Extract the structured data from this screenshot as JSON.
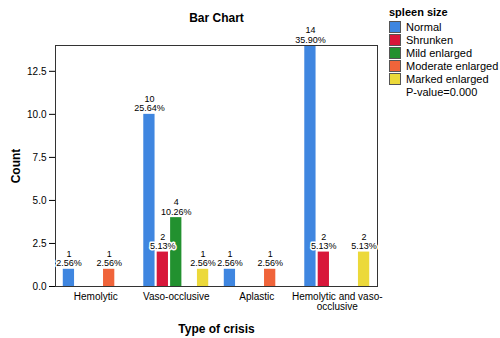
{
  "chart_data": {
    "type": "bar",
    "title": "Bar Chart",
    "x_label": "Type of crisis",
    "y_label": "Count",
    "categories": [
      "Hemolytic",
      "Vaso-occlusive",
      "Aplastic",
      "Hemolytic and vaso-occlusive"
    ],
    "series": [
      {
        "name": "Normal",
        "color": "#3f86e0",
        "values": [
          1,
          10,
          1,
          14
        ],
        "value_labels": [
          "1\n2.56%",
          "10\n25.64%",
          "1\n2.56%",
          "14\n35.90%"
        ]
      },
      {
        "name": "Shrunken",
        "color": "#d8173a",
        "values": [
          0,
          2,
          0,
          2
        ],
        "value_labels": [
          null,
          "2\n5.13%",
          null,
          "2\n5.13%"
        ]
      },
      {
        "name": "Mild enlarged",
        "color": "#22912f",
        "values": [
          0,
          4,
          0,
          0
        ],
        "value_labels": [
          null,
          "4\n10.26%",
          null,
          null
        ]
      },
      {
        "name": "Moderate enlarged",
        "color": "#f0643a",
        "values": [
          1,
          0,
          1,
          0
        ],
        "value_labels": [
          "1\n2.56%",
          null,
          "1\n2.56%",
          null
        ]
      },
      {
        "name": "Marked enlarged",
        "color": "#ecd93a",
        "values": [
          0,
          1,
          0,
          2
        ],
        "value_labels": [
          null,
          "1\n2.56%",
          null,
          "2\n5.13%"
        ]
      }
    ],
    "ylim": [
      0,
      14
    ],
    "yticks": [
      {
        "value": 0,
        "label": "0.0"
      },
      2.5,
      {
        "value": 5,
        "label": "5.0"
      },
      7.5,
      {
        "value": 10,
        "label": "10.0"
      },
      12.5
    ],
    "grid": false,
    "legend": "right",
    "legend_title": "spleen size",
    "annotations": [
      "P-value=0.000"
    ],
    "data_labels": true
  }
}
